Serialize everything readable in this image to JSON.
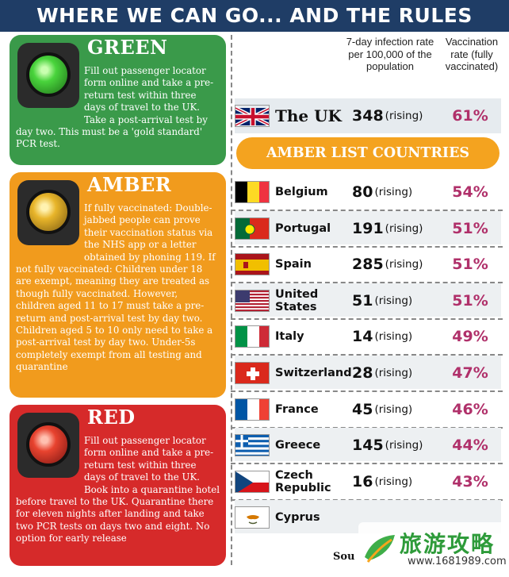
{
  "header": {
    "title": "WHERE WE CAN GO... AND THE RULES"
  },
  "panels": {
    "green": {
      "title": "GREEN",
      "text": "Fill out passenger locator form online and take a pre-return test within three days of travel to the UK. Take a post-arrival test by day two. This must be a 'gold standard' PCR test."
    },
    "amber": {
      "title": "AMBER",
      "text": "If fully vaccinated: Double-jabbed people can prove their vaccination status via the NHS app or a letter obtained by phoning 119. If not fully vaccinated: Children under 18 are exempt, meaning they are treated as though fully vaccinated. However, children aged 11 to 17 must take a pre-return and post-arrival test by day two. Children aged 5 to 10 only need to take a post-arrival test by day two. Under-5s completely exempt from all testing and quarantine"
    },
    "red": {
      "title": "RED",
      "text": "Fill out passenger locator form online and take a pre-return test within three days of travel to the UK. Book into a quarantine hotel before travel to the UK. Quarantine there for eleven nights after landing and take two PCR tests on days two and eight. No option for early release"
    }
  },
  "table": {
    "col_infection": "7-day infection rate per 100,000 of the population",
    "col_vaccination": "Vaccination rate (fully vaccinated)",
    "uk": {
      "name": "The UK",
      "rate": "348",
      "trend": "(rising)",
      "vaccinated": "61%",
      "flag": "uk-flag"
    },
    "amber_banner": "AMBER LIST COUNTRIES",
    "rows": [
      {
        "name": "Belgium",
        "rate": "80",
        "trend": "(rising)",
        "vaccinated": "54%",
        "flag": "belgium-flag"
      },
      {
        "name": "Portugal",
        "rate": "191",
        "trend": "(rising)",
        "vaccinated": "51%",
        "flag": "portugal-flag"
      },
      {
        "name": "Spain",
        "rate": "285",
        "trend": "(rising)",
        "vaccinated": "51%",
        "flag": "spain-flag"
      },
      {
        "name": "United States",
        "rate": "51",
        "trend": "(rising)",
        "vaccinated": "51%",
        "flag": "usa-flag"
      },
      {
        "name": "Italy",
        "rate": "14",
        "trend": "(rising)",
        "vaccinated": "49%",
        "flag": "italy-flag"
      },
      {
        "name": "Switzerland",
        "rate": "28",
        "trend": "(rising)",
        "vaccinated": "47%",
        "flag": "switzerland-flag"
      },
      {
        "name": "France",
        "rate": "45",
        "trend": "(rising)",
        "vaccinated": "46%",
        "flag": "france-flag"
      },
      {
        "name": "Greece",
        "rate": "145",
        "trend": "(rising)",
        "vaccinated": "44%",
        "flag": "greece-flag"
      },
      {
        "name": "Czech Republic",
        "rate": "16",
        "trend": "(rising)",
        "vaccinated": "43%",
        "flag": "czech-flag"
      },
      {
        "name": "Cyprus",
        "rate": "",
        "trend": "",
        "vaccinated": "",
        "flag": "cyprus-flag"
      }
    ],
    "source": "Sou"
  },
  "watermark": {
    "title": "旅游攻略",
    "url": "www.1681989.com"
  },
  "colors": {
    "header": "#1f3d66",
    "green": "#3a9a4a",
    "amber": "#f19b1d",
    "red": "#d62a2a",
    "vaccination_text": "#b0306a"
  }
}
